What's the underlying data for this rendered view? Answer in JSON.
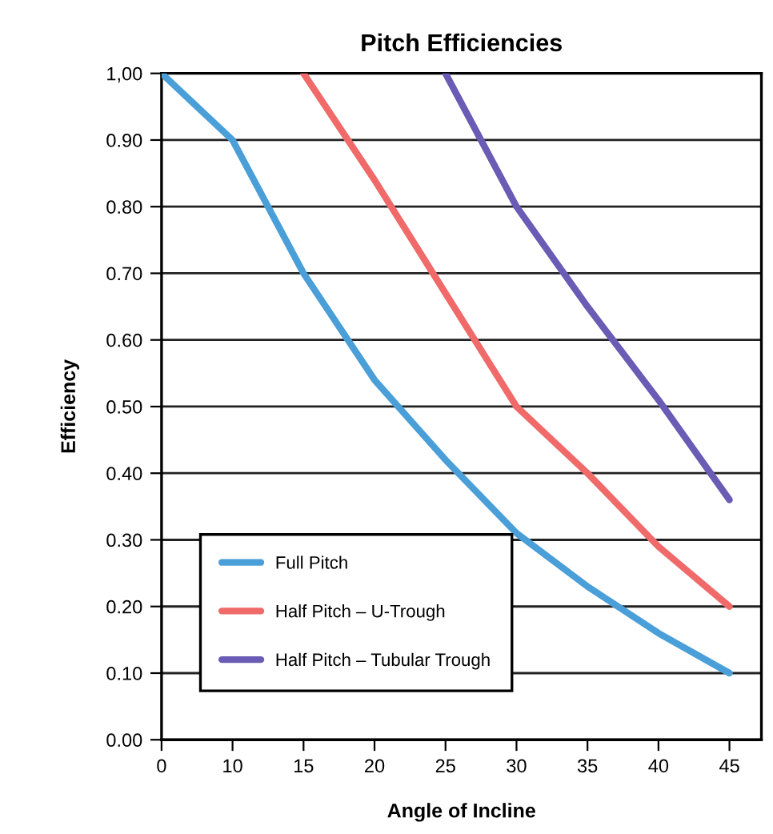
{
  "chart_data": {
    "type": "line",
    "title": "Pitch Efficiencies",
    "xlabel": "Angle of Incline",
    "ylabel": "Efficiency",
    "categories": [
      "0",
      "10",
      "15",
      "20",
      "25",
      "30",
      "35",
      "40",
      "45"
    ],
    "series": [
      {
        "name": "Full Pitch",
        "color": "#4a9fd8",
        "values": [
          1.0,
          0.9,
          0.7,
          0.54,
          0.42,
          0.31,
          0.23,
          0.16,
          0.1
        ]
      },
      {
        "name": "Half Pitch – U-Trough",
        "color": "#f06a6a",
        "values": [
          null,
          null,
          1.0,
          0.84,
          0.67,
          0.5,
          0.4,
          0.29,
          0.2
        ]
      },
      {
        "name": "Half Pitch – Tubular Trough",
        "color": "#6a5bb5",
        "values": [
          null,
          null,
          null,
          null,
          1.0,
          0.8,
          0.65,
          0.51,
          0.36
        ]
      }
    ],
    "ylim": [
      0,
      1.0
    ],
    "yticks": [
      {
        "value": 0.0,
        "label": "0.00"
      },
      {
        "value": 0.1,
        "label": "0.10"
      },
      {
        "value": 0.2,
        "label": "0.20"
      },
      {
        "value": 0.3,
        "label": "0.30"
      },
      {
        "value": 0.4,
        "label": "0.40"
      },
      {
        "value": 0.5,
        "label": "0.50"
      },
      {
        "value": 0.6,
        "label": "0.60"
      },
      {
        "value": 0.7,
        "label": "0.70"
      },
      {
        "value": 0.8,
        "label": "0.80"
      },
      {
        "value": 0.9,
        "label": "0.90"
      },
      {
        "value": 1.0,
        "label": "1,00"
      }
    ],
    "grid": "y",
    "legend": "bottom left",
    "marker": "none",
    "line_style": "solid"
  }
}
